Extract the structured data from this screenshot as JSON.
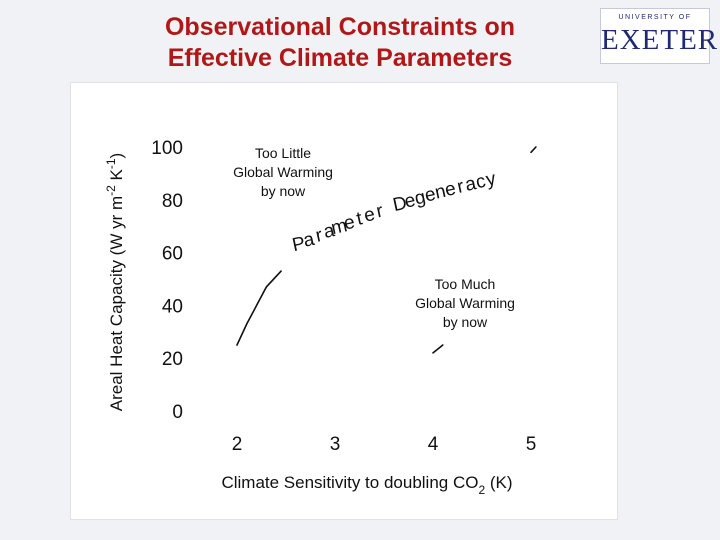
{
  "slide": {
    "title_line1": "Observational Constraints on",
    "title_line2": "Effective Climate Parameters",
    "logo_small": "UNIVERSITY OF",
    "logo_main": "EXETER"
  },
  "colors": {
    "title": "#b01818",
    "logo": "#1f2a72",
    "curve": "#111111"
  },
  "chart_data": {
    "type": "line",
    "title": "Observational Constraints on Effective Climate Parameters",
    "xlabel": "Climate Sensitivity to doubling CO2 (K)",
    "ylabel": "Areal Heat Capacity (W yr m-2 K-1)",
    "xlim": [
      2,
      5
    ],
    "ylim": [
      0,
      100
    ],
    "x_ticks": [
      "2",
      "3",
      "4",
      "5"
    ],
    "y_ticks": [
      "0",
      "20",
      "40",
      "60",
      "80",
      "100"
    ],
    "grid": false,
    "annotations": {
      "too_little": [
        "Too Little",
        "Global Warming",
        "by now"
      ],
      "too_much": [
        "Too Much",
        "Global Warming",
        "by now"
      ],
      "degeneracy_label": "Parameter Degeneracy"
    },
    "series": [
      {
        "name": "Parameter Degeneracy",
        "segments": [
          [
            [
              2.0,
              25
            ],
            [
              2.1,
              33
            ],
            [
              2.2,
              40
            ],
            [
              2.3,
              47
            ],
            [
              2.45,
              53
            ]
          ],
          [
            [
              4.0,
              22
            ],
            [
              4.05,
              23.5
            ],
            [
              4.1,
              25
            ]
          ],
          [
            [
              5.0,
              98
            ],
            [
              5.05,
              100
            ]
          ]
        ]
      }
    ]
  }
}
